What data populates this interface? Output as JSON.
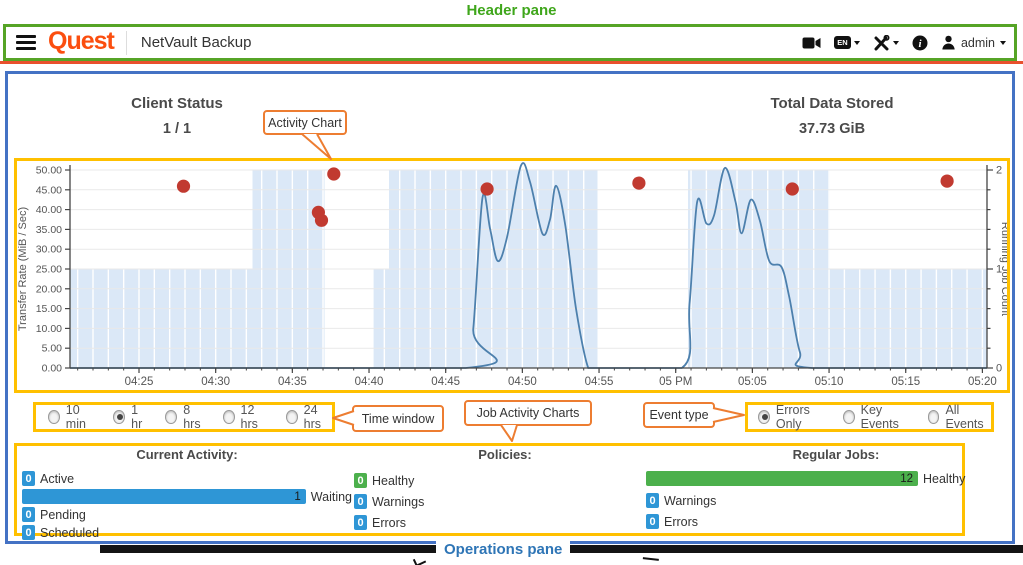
{
  "annotations": {
    "header_pane_label": "Header pane",
    "operations_pane_label": "Operations pane",
    "callouts": {
      "activity_chart": "Activity Chart",
      "time_window": "Time window",
      "job_activity_charts": "Job Activity Charts",
      "event_type": "Event type"
    },
    "colors": {
      "annotation_green": "#3fa61b",
      "annotation_blue": "#2e75b6",
      "annotation_yellow": "#ffc000",
      "annotation_orange": "#ed7d31",
      "outer_border_blue": "#4472c4"
    }
  },
  "header": {
    "brand": "Quest",
    "app_title": "NetVault Backup",
    "language_badge": "EN",
    "user_name": "admin"
  },
  "summary": {
    "client_status": {
      "label": "Client Status",
      "value": "1 / 1"
    },
    "total_data_stored": {
      "label": "Total Data Stored",
      "value": "37.73 GiB"
    }
  },
  "time_window": {
    "options": [
      {
        "label": "10 min",
        "selected": false
      },
      {
        "label": "1 hr",
        "selected": true
      },
      {
        "label": "8 hrs",
        "selected": false
      },
      {
        "label": "12 hrs",
        "selected": false
      },
      {
        "label": "24 hrs",
        "selected": false
      }
    ]
  },
  "event_type": {
    "options": [
      {
        "label": "Errors Only",
        "selected": true
      },
      {
        "label": "Key Events",
        "selected": false
      },
      {
        "label": "All Events",
        "selected": false
      }
    ]
  },
  "operations": {
    "current_activity": {
      "title": "Current Activity:",
      "rows": [
        {
          "value": "0",
          "label": "Active",
          "style": "box-blue"
        },
        {
          "value": "1",
          "label": "Waiting",
          "style": "bar-blue"
        },
        {
          "value": "0",
          "label": "Pending",
          "style": "box-blue"
        },
        {
          "value": "0",
          "label": "Scheduled",
          "style": "box-blue"
        }
      ]
    },
    "policies": {
      "title": "Policies:",
      "rows": [
        {
          "value": "0",
          "label": "Healthy",
          "style": "box-green"
        },
        {
          "value": "0",
          "label": "Warnings",
          "style": "box-blue"
        },
        {
          "value": "0",
          "label": "Errors",
          "style": "box-blue"
        }
      ]
    },
    "regular_jobs": {
      "title": "Regular Jobs:",
      "rows": [
        {
          "value": "12",
          "label": "Healthy",
          "style": "bar-green"
        },
        {
          "value": "0",
          "label": "Warnings",
          "style": "box-blue"
        },
        {
          "value": "0",
          "label": "Errors",
          "style": "box-blue"
        }
      ]
    }
  },
  "chart_data": {
    "type": "mixed",
    "subtype": "line + step-area + scatter",
    "x_axis": {
      "domain_minutes": [
        20.5,
        80.3
      ],
      "minor_step": 1,
      "major_ticks": [
        {
          "m": 25,
          "label": "04:25"
        },
        {
          "m": 30,
          "label": "04:30"
        },
        {
          "m": 35,
          "label": "04:35"
        },
        {
          "m": 40,
          "label": "04:40"
        },
        {
          "m": 45,
          "label": "04:45"
        },
        {
          "m": 50,
          "label": "04:50"
        },
        {
          "m": 55,
          "label": "04:55"
        },
        {
          "m": 60,
          "label": "05 PM"
        },
        {
          "m": 65,
          "label": "05:05"
        },
        {
          "m": 70,
          "label": "05:10"
        },
        {
          "m": 75,
          "label": "05:15"
        },
        {
          "m": 80,
          "label": "05:20"
        }
      ]
    },
    "y_left": {
      "label": "Transfer Rate (MiB / Sec)",
      "domain": [
        0,
        50
      ],
      "tick_step": 5
    },
    "y_right": {
      "label": "Running Job Count",
      "domain": [
        0,
        2
      ],
      "major_ticks": [
        0,
        1,
        2
      ],
      "minor_step": 0.2
    },
    "running_job_count_area": {
      "color": "#dbe8f7",
      "segments": [
        [
          20.5,
          32.4,
          1
        ],
        [
          32.4,
          37.1,
          2
        ],
        [
          37.1,
          40.3,
          0
        ],
        [
          40.3,
          41.3,
          1
        ],
        [
          41.3,
          54.9,
          2
        ],
        [
          54.9,
          60.8,
          0
        ],
        [
          60.8,
          70.0,
          2
        ],
        [
          70.0,
          80.3,
          1
        ]
      ]
    },
    "transfer_rate_line": {
      "color": "#4d80ad",
      "points": [
        [
          20.5,
          0
        ],
        [
          46.3,
          0
        ],
        [
          46.8,
          10
        ],
        [
          47.4,
          43
        ],
        [
          47.9,
          35
        ],
        [
          48.4,
          27
        ],
        [
          49.0,
          33
        ],
        [
          49.9,
          51
        ],
        [
          50.5,
          47
        ],
        [
          51.3,
          34
        ],
        [
          51.8,
          37.5
        ],
        [
          52.2,
          46
        ],
        [
          52.8,
          36
        ],
        [
          53.5,
          15
        ],
        [
          54.3,
          0
        ],
        [
          55.0,
          0
        ],
        [
          60.4,
          0
        ],
        [
          60.9,
          16
        ],
        [
          61.4,
          42
        ],
        [
          62.0,
          36.5
        ],
        [
          62.5,
          38.5
        ],
        [
          63.2,
          50.5
        ],
        [
          63.9,
          42
        ],
        [
          64.3,
          34
        ],
        [
          64.9,
          42.5
        ],
        [
          65.5,
          37
        ],
        [
          66.1,
          27
        ],
        [
          66.9,
          25.5
        ],
        [
          67.4,
          18
        ],
        [
          68.1,
          4
        ],
        [
          68.9,
          0
        ],
        [
          80.3,
          0
        ]
      ]
    },
    "error_events": {
      "color": "#c13a30",
      "points": [
        [
          27.9,
          45.9
        ],
        [
          36.7,
          39.3
        ],
        [
          36.9,
          37.3
        ],
        [
          37.7,
          49.0
        ],
        [
          47.7,
          45.2
        ],
        [
          57.6,
          46.7
        ],
        [
          67.6,
          45.2
        ],
        [
          77.7,
          47.2
        ]
      ]
    },
    "grid": "horizontal major, white minute stripes inside area"
  }
}
